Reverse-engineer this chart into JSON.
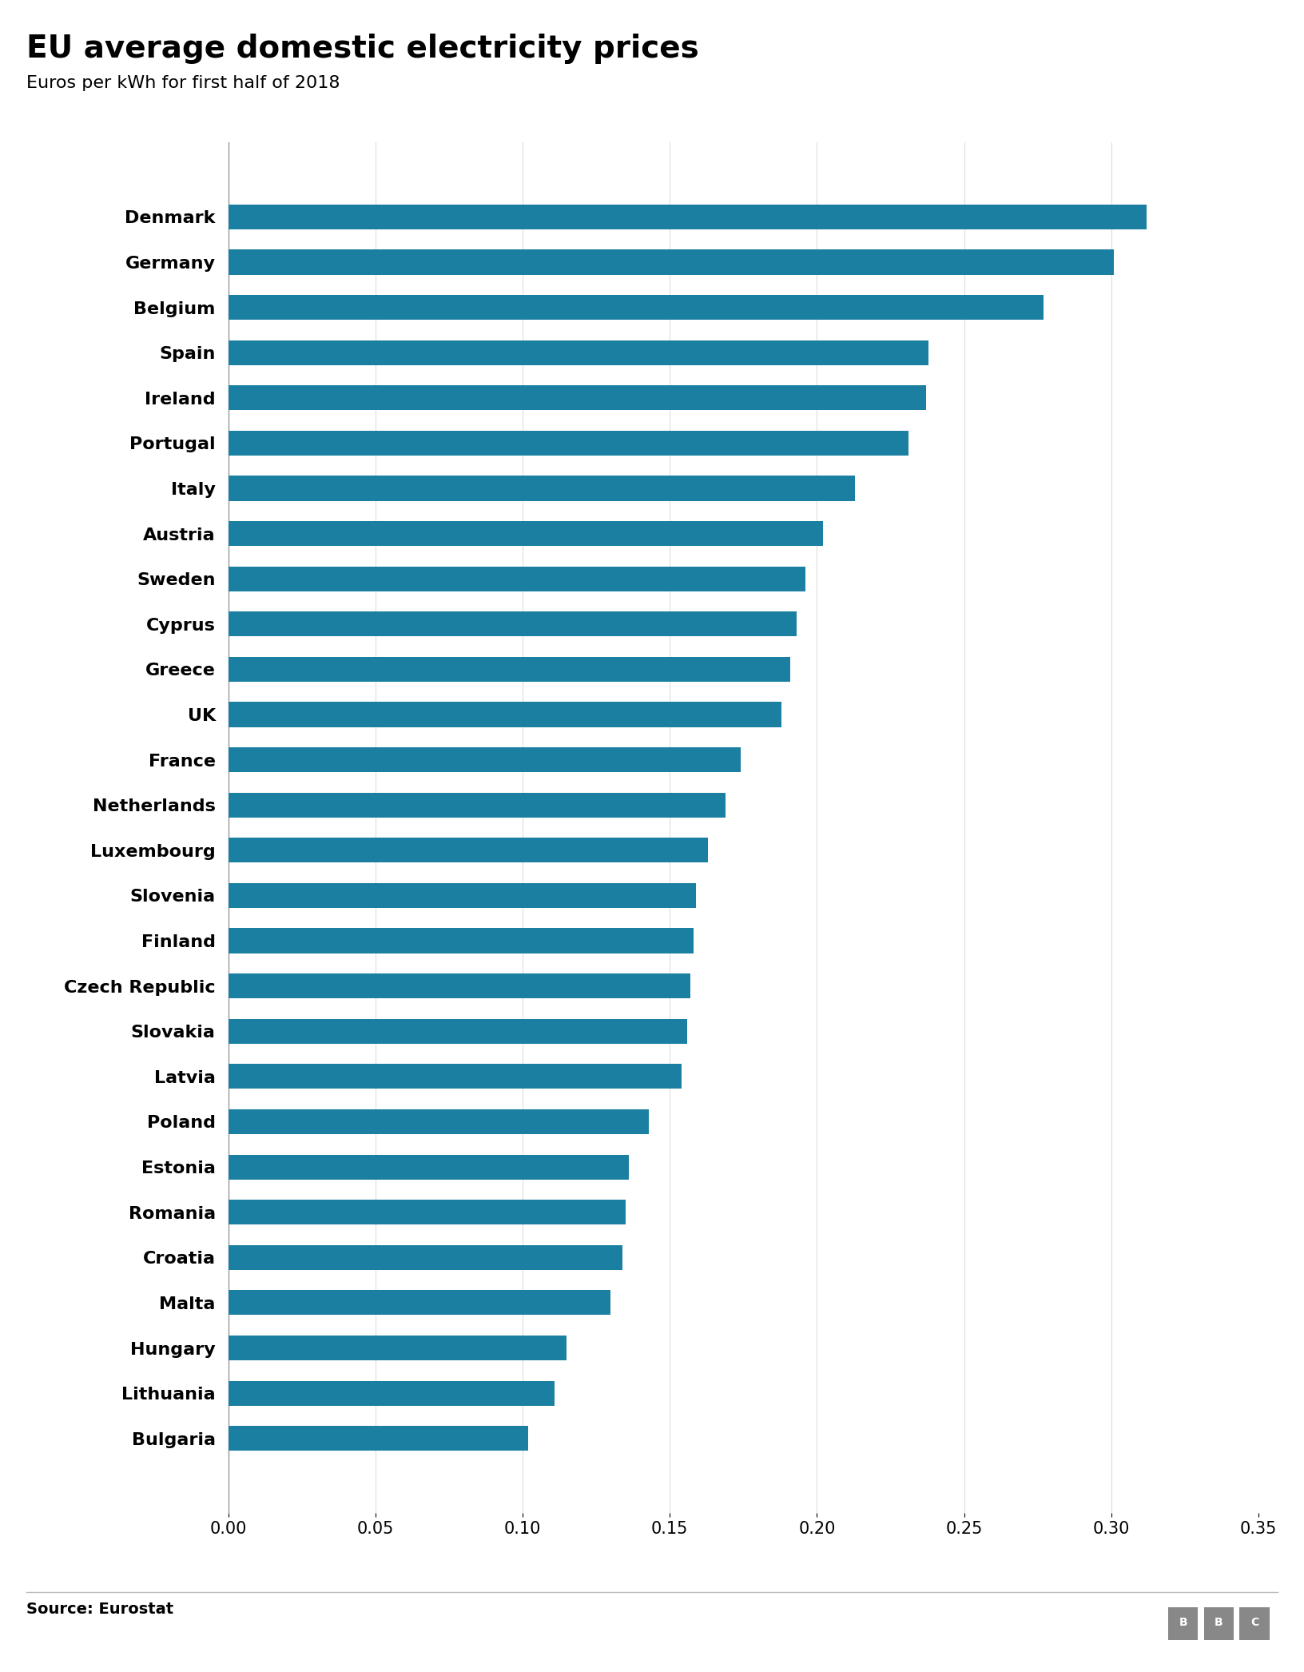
{
  "title": "EU average domestic electricity prices",
  "subtitle": "Euros per kWh for first half of 2018",
  "source": "Source: Eurostat",
  "bar_color": "#1a7fa0",
  "background_color": "#ffffff",
  "xlim": [
    0,
    0.35
  ],
  "xticks": [
    0.0,
    0.05,
    0.1,
    0.15,
    0.2,
    0.25,
    0.3,
    0.35
  ],
  "countries": [
    "Denmark",
    "Germany",
    "Belgium",
    "Spain",
    "Ireland",
    "Portugal",
    "Italy",
    "Austria",
    "Sweden",
    "Cyprus",
    "Greece",
    "UK",
    "France",
    "Netherlands",
    "Luxembourg",
    "Slovenia",
    "Finland",
    "Czech Republic",
    "Slovakia",
    "Latvia",
    "Poland",
    "Estonia",
    "Romania",
    "Croatia",
    "Malta",
    "Hungary",
    "Lithuania",
    "Bulgaria"
  ],
  "values": [
    0.312,
    0.301,
    0.277,
    0.238,
    0.237,
    0.231,
    0.213,
    0.202,
    0.196,
    0.193,
    0.191,
    0.188,
    0.174,
    0.169,
    0.163,
    0.159,
    0.158,
    0.157,
    0.156,
    0.154,
    0.143,
    0.136,
    0.135,
    0.134,
    0.13,
    0.115,
    0.111,
    0.102
  ],
  "title_fontsize": 28,
  "subtitle_fontsize": 16,
  "tick_fontsize": 15,
  "ytick_fontsize": 16,
  "source_fontsize": 14,
  "bar_height": 0.55
}
